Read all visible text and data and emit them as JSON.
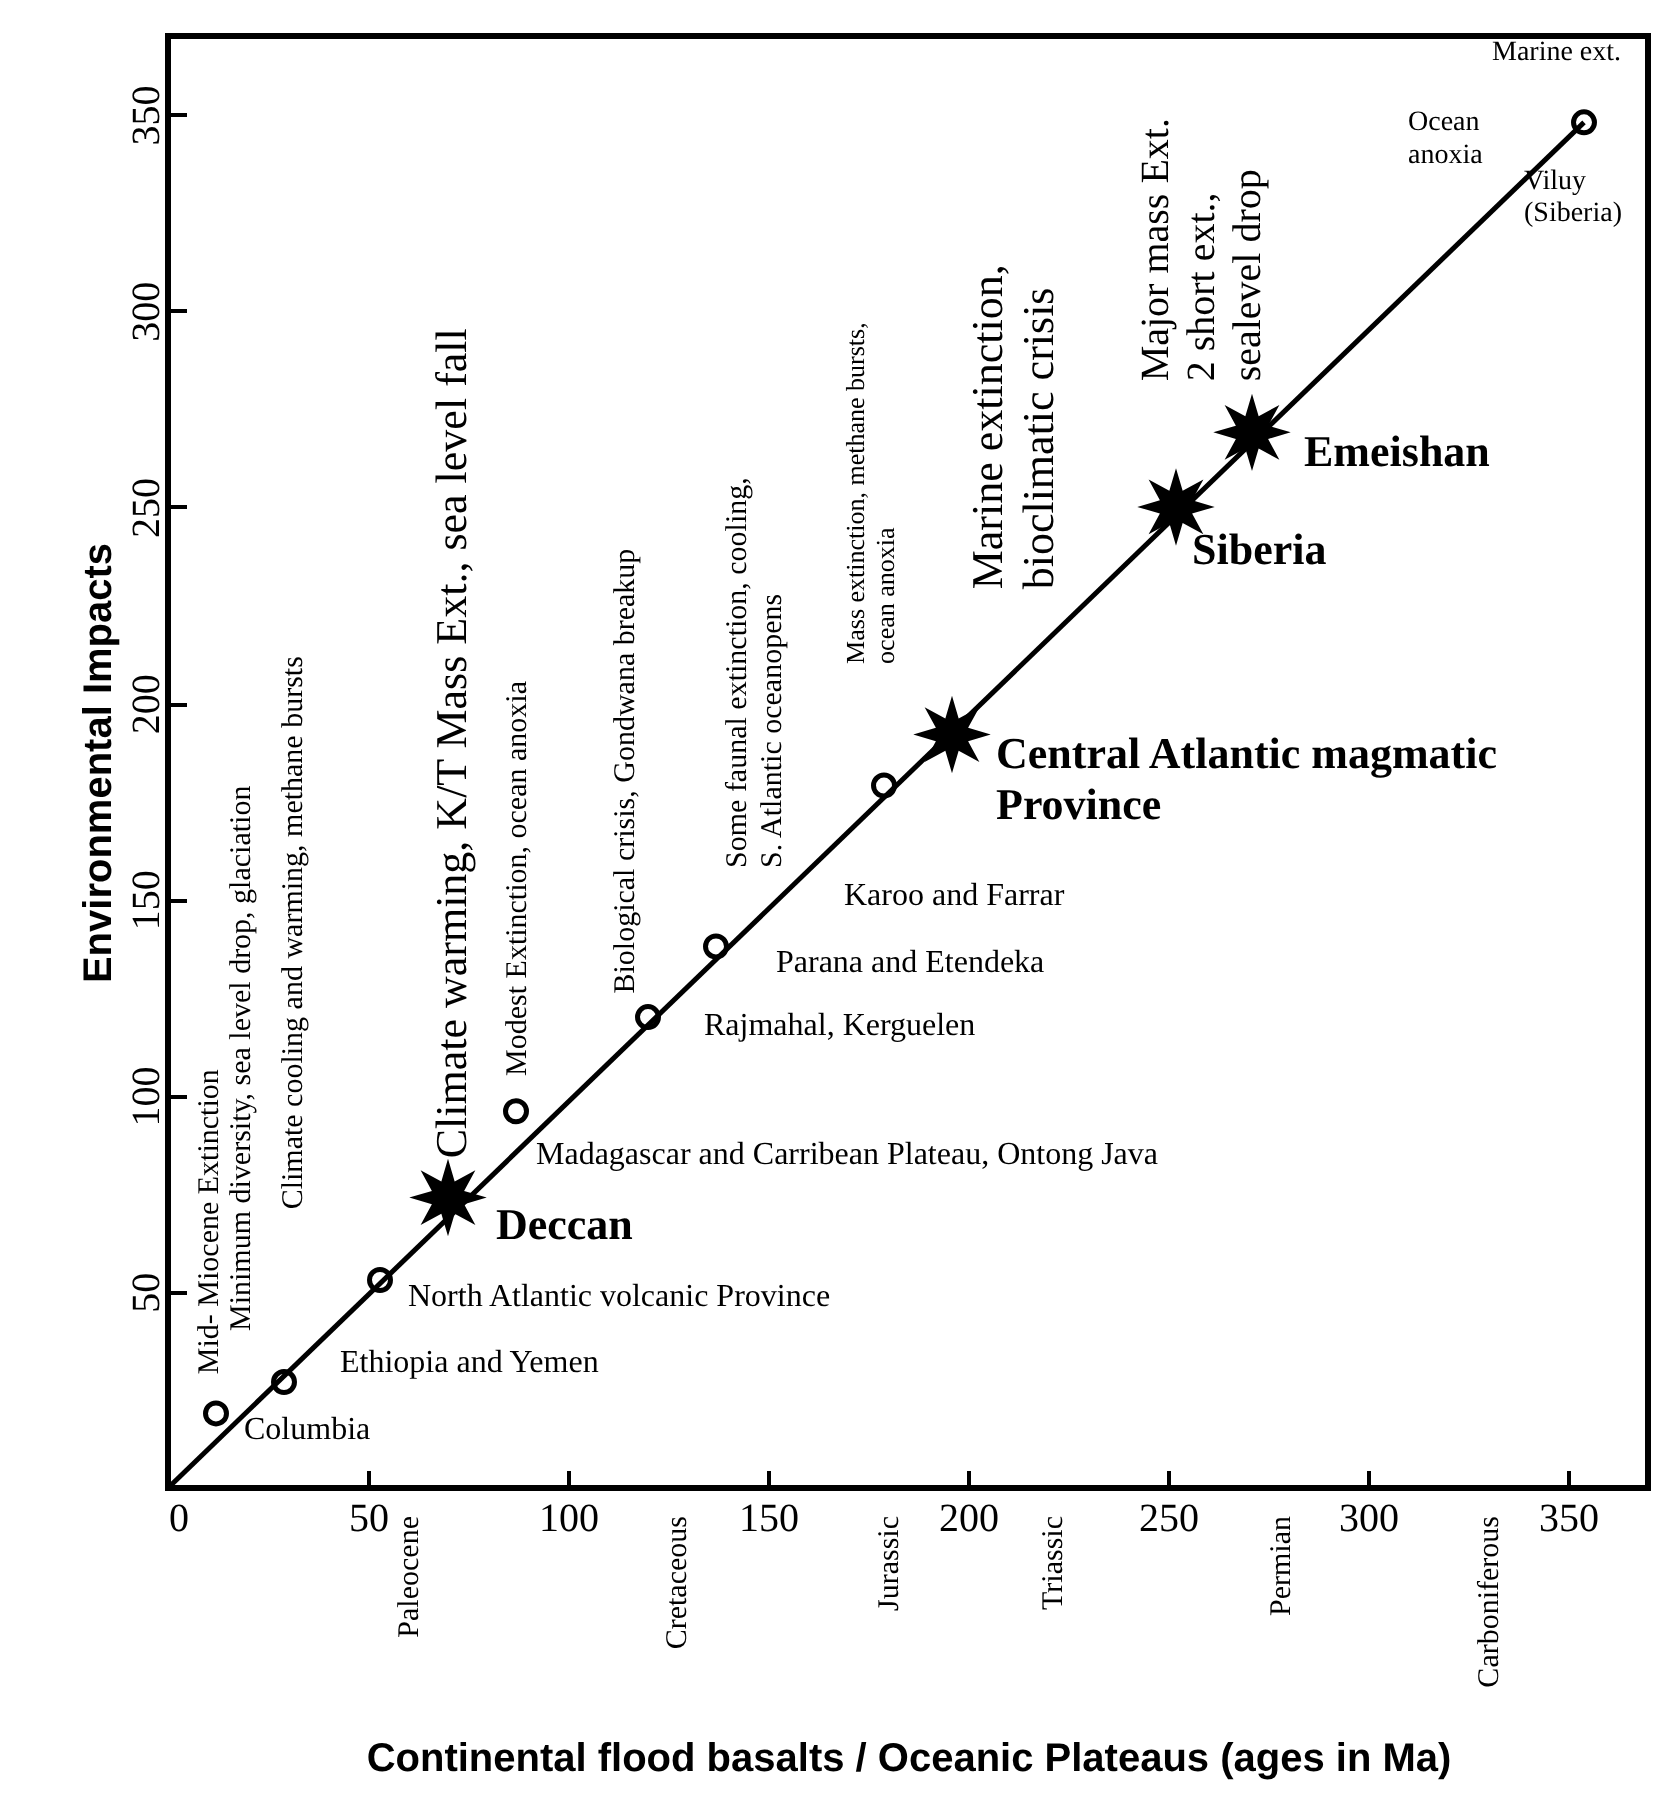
{
  "chart_data": {
    "type": "scatter",
    "xlabel": "Continental flood basalts / Oceanic Plateaus (ages in Ma)",
    "ylabel": "Environmental Impacts",
    "xlim": [
      0,
      370
    ],
    "xticks": [
      0,
      50,
      100,
      150,
      200,
      250,
      300,
      350
    ],
    "ylim": [
      0,
      370
    ],
    "yticks": [
      50,
      100,
      150,
      200,
      250,
      300,
      350
    ],
    "grid": false,
    "series": [
      {
        "type": "line",
        "color": "#000000",
        "marker": "none",
        "line_style": "solid",
        "x": [
          0,
          354
        ],
        "values": [
          0,
          348
        ]
      },
      {
        "type": "scatter",
        "color": "#000000",
        "marker": "circle",
        "x": [
          12,
          29,
          53,
          87,
          120,
          137,
          179,
          354
        ],
        "values": [
          19,
          27,
          53,
          96,
          120,
          138,
          179,
          348
        ]
      },
      {
        "type": "scatter",
        "color": "#000000",
        "marker": "star",
        "x": [
          70,
          196,
          252,
          271
        ],
        "values": [
          74,
          192,
          250,
          269
        ]
      }
    ],
    "annotations": [
      {
        "text": "Columbia",
        "x": 19,
        "y": 15
      },
      "Ethiopia and Yemen",
      "North Atlantic volcanic Province",
      "Deccan",
      "Madagascar and Carribean Plateau, Ontong Java",
      "Rajmahal, Kerguelen",
      "Parana and Etendeka",
      "Karoo and Farrar",
      "Central Atlantic magmatic\nProvince",
      "Siberia",
      "Emeishan",
      "Viluy\n(Siberia)",
      "Ocean\nanoxia",
      "Marine ext.",
      "Mid- Miocene Extinction",
      "Minimum diversity, sea level drop, glaciation",
      "Climate cooling and warming,  methane bursts",
      {
        "text": "Climate warming, K/T Mass Ext., sea level fall",
        "x": 71,
        "y": 84
      },
      "Modest Extinction,  ocean anoxia",
      "Biological crisis, Gondwana breakup",
      "Some faunal extinction, cooling,\nS. Atlantic oceanopens",
      "Mass extinction, methane bursts,\nocean anoxia",
      "Marine extinction,\nbioclimatic crisis",
      "Major mass Ext.\n2 short ext.,\nsealevel drop",
      "Paleocene",
      "Cretaceous",
      "Jurassic",
      "Triassic",
      "Permian",
      "Carboniferous"
    ]
  }
}
